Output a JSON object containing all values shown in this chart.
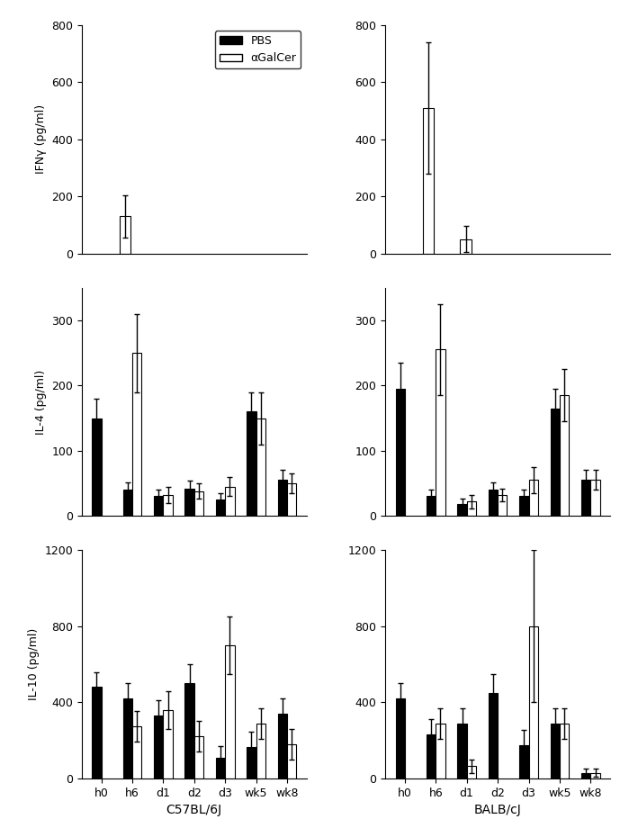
{
  "timepoints": [
    "h0",
    "h6",
    "d1",
    "d2",
    "d3",
    "wk5",
    "wk8"
  ],
  "legend_labels": [
    "PBS",
    "αGalCer"
  ],
  "bar_colors": [
    "black",
    "white"
  ],
  "bar_edgecolor": "black",
  "C57BL6J": {
    "xlabel": "C57BL/6J",
    "IFNg": {
      "ylabel": "IFNγ (pg/ml)",
      "ylim": [
        0,
        800
      ],
      "yticks": [
        0,
        200,
        400,
        600,
        800
      ],
      "PBS_vals": [
        0,
        0,
        0,
        0,
        0,
        0,
        0
      ],
      "PBS_err": [
        0,
        0,
        0,
        0,
        0,
        0,
        0
      ],
      "aGC_vals": [
        0,
        130,
        0,
        0,
        0,
        0,
        0
      ],
      "aGC_err": [
        0,
        75,
        0,
        0,
        0,
        0,
        0
      ]
    },
    "IL4": {
      "ylabel": "IL-4 (pg/ml)",
      "ylim": [
        0,
        350
      ],
      "yticks": [
        0,
        100,
        200,
        300
      ],
      "PBS_vals": [
        150,
        40,
        30,
        42,
        25,
        160,
        55
      ],
      "PBS_err": [
        30,
        12,
        10,
        12,
        10,
        30,
        15
      ],
      "aGC_vals": [
        0,
        250,
        32,
        38,
        45,
        150,
        50
      ],
      "aGC_err": [
        0,
        60,
        12,
        12,
        15,
        40,
        15
      ]
    },
    "IL10": {
      "ylabel": "IL-10 (pg/ml)",
      "ylim": [
        0,
        1200
      ],
      "yticks": [
        0,
        400,
        800,
        1200
      ],
      "PBS_vals": [
        480,
        420,
        330,
        500,
        110,
        165,
        340
      ],
      "PBS_err": [
        80,
        80,
        80,
        100,
        60,
        80,
        80
      ],
      "aGC_vals": [
        0,
        275,
        360,
        220,
        700,
        290,
        180
      ],
      "aGC_err": [
        0,
        80,
        100,
        80,
        150,
        80,
        80
      ]
    }
  },
  "BALBcJ": {
    "xlabel": "BALB/cJ",
    "IFNg": {
      "ylabel": "IFNγ (pg/ml)",
      "ylim": [
        0,
        800
      ],
      "yticks": [
        0,
        200,
        400,
        600,
        800
      ],
      "PBS_vals": [
        0,
        0,
        0,
        0,
        0,
        0,
        0
      ],
      "PBS_err": [
        0,
        0,
        0,
        0,
        0,
        0,
        0
      ],
      "aGC_vals": [
        0,
        510,
        50,
        0,
        0,
        0,
        0
      ],
      "aGC_err": [
        0,
        230,
        45,
        0,
        0,
        0,
        0
      ]
    },
    "IL4": {
      "ylabel": "IL-4 (pg/ml)",
      "ylim": [
        0,
        350
      ],
      "yticks": [
        0,
        100,
        200,
        300
      ],
      "PBS_vals": [
        195,
        30,
        18,
        40,
        30,
        165,
        55
      ],
      "PBS_err": [
        40,
        10,
        8,
        12,
        10,
        30,
        15
      ],
      "aGC_vals": [
        0,
        255,
        22,
        32,
        55,
        185,
        55
      ],
      "aGC_err": [
        0,
        70,
        10,
        10,
        20,
        40,
        15
      ]
    },
    "IL10": {
      "ylabel": "IL-10 (pg/ml)",
      "ylim": [
        0,
        1200
      ],
      "yticks": [
        0,
        400,
        800,
        1200
      ],
      "PBS_vals": [
        420,
        230,
        290,
        450,
        175,
        290,
        30
      ],
      "PBS_err": [
        80,
        80,
        80,
        100,
        80,
        80,
        20
      ],
      "aGC_vals": [
        0,
        290,
        65,
        0,
        800,
        290,
        30
      ],
      "aGC_err": [
        0,
        80,
        35,
        0,
        400,
        80,
        20
      ]
    }
  },
  "bar_width": 0.3,
  "figsize": [
    6.99,
    9.3
  ],
  "dpi": 100,
  "background_color": "#ffffff"
}
